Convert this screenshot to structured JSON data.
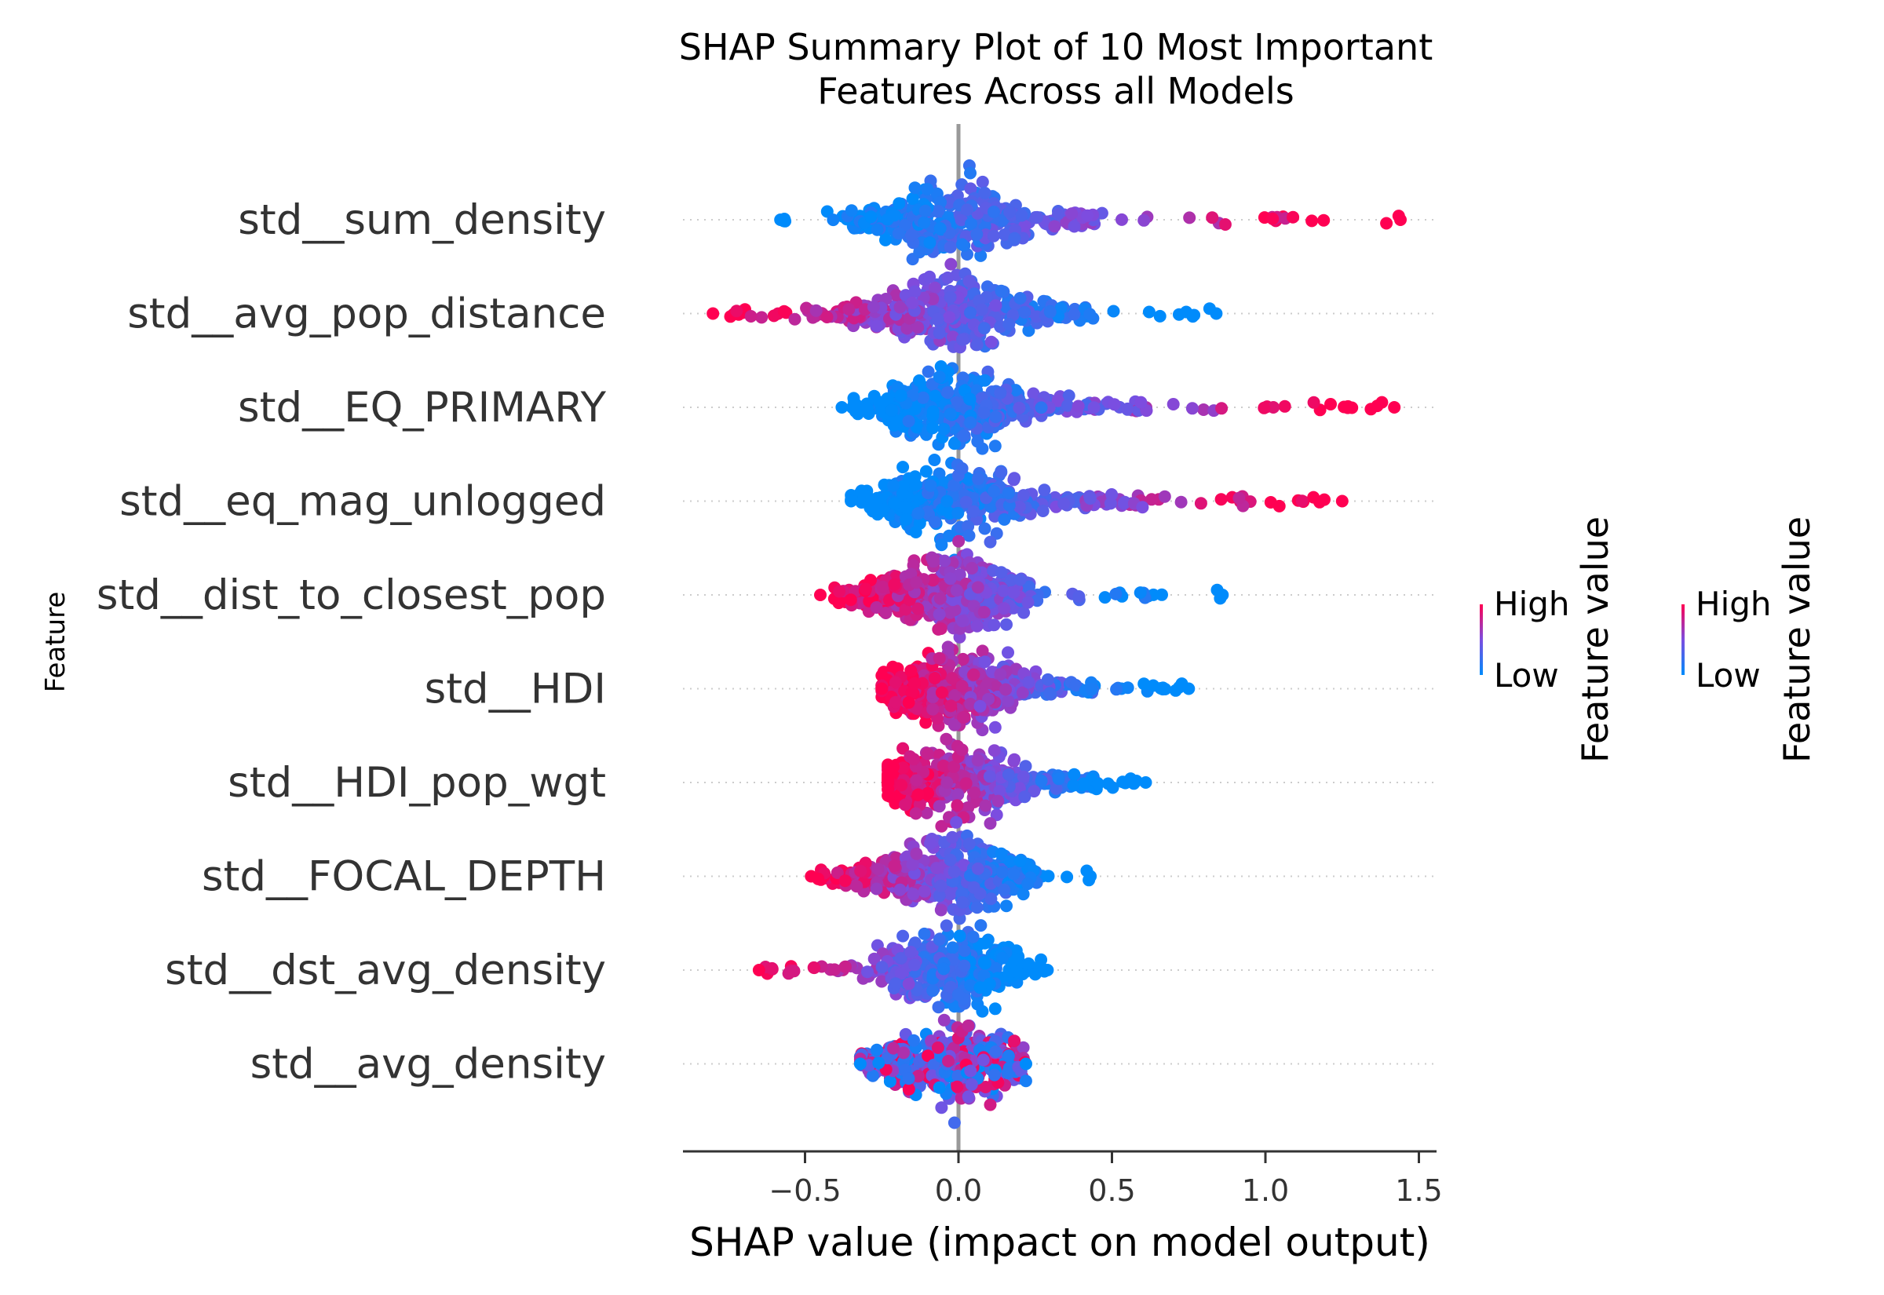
{
  "colors": {
    "high": "#ff0052",
    "low": "#008bfb",
    "axis": "#333333",
    "zero_line": "#999999",
    "grid": "#cccccc"
  },
  "chart_data": {
    "type": "scatter",
    "subtype": "shap-beeswarm",
    "title_lines": [
      "SHAP Summary Plot of 10 Most Important",
      "Features Across all Models"
    ],
    "xlabel": "SHAP value (impact on model output)",
    "ylabel": "Feature",
    "xlim": [
      -0.9,
      1.55
    ],
    "xticks": [
      -0.5,
      0.0,
      0.5,
      1.0,
      1.5
    ],
    "xtick_labels": [
      "−0.5",
      "0.0",
      "0.5",
      "1.0",
      "1.5"
    ],
    "grid": "dotted row guides",
    "legend": {
      "position": "right",
      "title": "Feature value",
      "high_label": "High",
      "low_label": "Low",
      "count": 2
    },
    "features": [
      {
        "name": "std__sum_density",
        "min": -0.58,
        "max": 1.44,
        "core": [
          -0.35,
          0.45
        ],
        "high_side": "right"
      },
      {
        "name": "std__avg_pop_distance",
        "min": -0.8,
        "max": 0.84,
        "core": [
          -0.5,
          0.45
        ],
        "high_side": "left"
      },
      {
        "name": "std__EQ_PRIMARY",
        "min": -0.38,
        "max": 1.42,
        "core": [
          -0.35,
          0.6
        ],
        "high_side": "right"
      },
      {
        "name": "std__eq_mag_unlogged",
        "min": -0.35,
        "max": 1.25,
        "core": [
          -0.3,
          0.6
        ],
        "high_side": "right"
      },
      {
        "name": "std__dist_to_closest_pop",
        "min": -0.45,
        "max": 0.86,
        "core": [
          -0.4,
          0.25
        ],
        "high_side": "left"
      },
      {
        "name": "std__HDI",
        "min": -0.25,
        "max": 0.75,
        "core": [
          -0.25,
          0.45
        ],
        "high_side": "left"
      },
      {
        "name": "std__HDI_pop_wgt",
        "min": -0.23,
        "max": 0.61,
        "core": [
          -0.2,
          0.45
        ],
        "high_side": "left"
      },
      {
        "name": "std__FOCAL_DEPTH",
        "min": -0.48,
        "max": 0.43,
        "core": [
          -0.42,
          0.25
        ],
        "high_side": "left"
      },
      {
        "name": "std__dst_avg_density",
        "min": -0.65,
        "max": 0.29,
        "core": [
          -0.25,
          0.2
        ],
        "high_side": "left"
      },
      {
        "name": "std__avg_density",
        "min": -0.32,
        "max": 0.22,
        "core": [
          -0.3,
          0.22
        ],
        "high_side": "mixed"
      }
    ]
  }
}
